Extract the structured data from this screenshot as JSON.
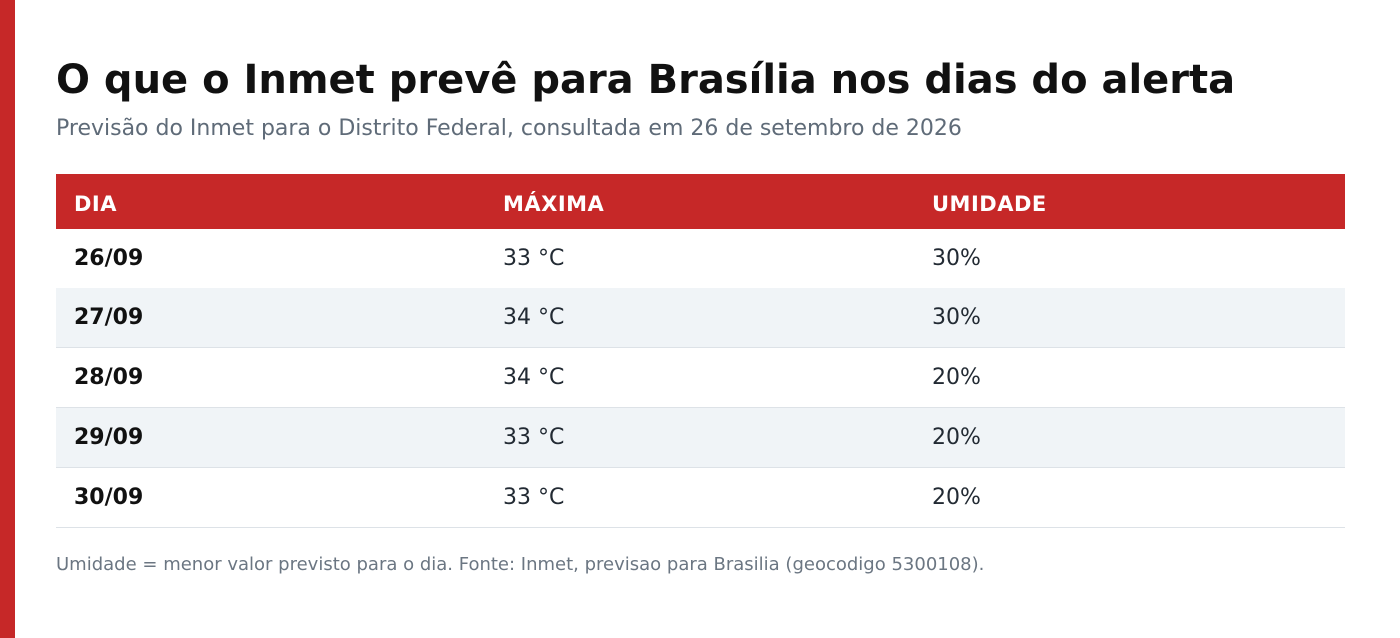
{
  "colors": {
    "accent": "#c62828",
    "row_alt": "#f0f4f7",
    "title": "#111111",
    "muted": "#5f6b78"
  },
  "header": {
    "title": "O que o Inmet prevê para Brasília nos dias do alerta",
    "subtitle": "Previsão do Inmet para o Distrito Federal, consultada em 26 de setembro de 2026"
  },
  "table": {
    "columns": [
      "DIA",
      "MÁXIMA",
      "UMIDADE"
    ],
    "rows": [
      {
        "day": "26/09",
        "max": "33 °C",
        "humidity": "30%"
      },
      {
        "day": "27/09",
        "max": "34 °C",
        "humidity": "30%"
      },
      {
        "day": "28/09",
        "max": "34 °C",
        "humidity": "20%"
      },
      {
        "day": "29/09",
        "max": "33 °C",
        "humidity": "20%"
      },
      {
        "day": "30/09",
        "max": "33 °C",
        "humidity": "20%"
      }
    ]
  },
  "footnote": "Umidade = menor valor previsto para o dia. Fonte: Inmet, previsao para Brasilia (geocodigo 5300108)."
}
